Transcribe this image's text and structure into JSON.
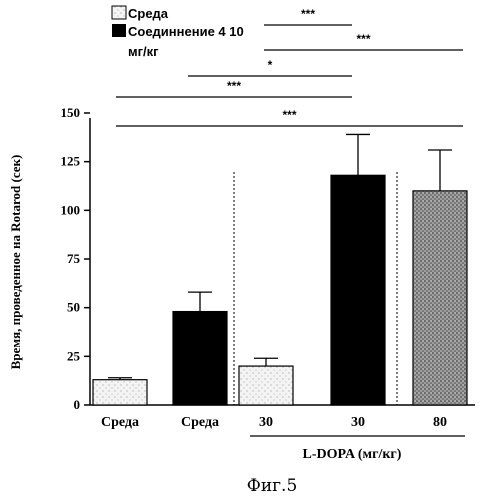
{
  "figure_caption": "Фиг.5",
  "chart_data": {
    "type": "bar",
    "categories": [
      "Среда",
      "Среда",
      "30",
      "30",
      "80"
    ],
    "group_label": "L-DOPA (мг/кг)",
    "ylabel": "Время, проведенное на Rotarod (сек)",
    "ylim": [
      0,
      150
    ],
    "yticks": [
      "0",
      "25",
      "50",
      "75",
      "100",
      "125",
      "150"
    ],
    "grid": false,
    "legend_position": "top-left",
    "legend": [
      {
        "label": "Среда",
        "pattern": "light-stipple"
      },
      {
        "label": "Соединнение 4 10",
        "label_line2": "мг/кг",
        "pattern": "black"
      }
    ],
    "bars": [
      {
        "category": "Среда",
        "value": 13,
        "error": 1,
        "pattern": "light-stipple"
      },
      {
        "category": "Среда",
        "value": 48,
        "error": 10,
        "pattern": "black"
      },
      {
        "category": "30",
        "value": 20,
        "error": 4,
        "pattern": "light-stipple"
      },
      {
        "category": "30",
        "value": 118,
        "error": 21,
        "pattern": "black"
      },
      {
        "category": "80",
        "value": 110,
        "error": 21,
        "pattern": "dense-stipple"
      }
    ],
    "significance": [
      {
        "label": "***",
        "from_bar": 3,
        "to_bar": 4
      },
      {
        "label": "***",
        "from_bar": 3,
        "to_bar": 5
      },
      {
        "label": "*",
        "from_bar": 2,
        "to_bar": 4
      },
      {
        "label": "***",
        "from_bar": 1,
        "to_bar": 4
      },
      {
        "label": "***",
        "from_bar": 1,
        "to_bar": 5
      }
    ]
  }
}
